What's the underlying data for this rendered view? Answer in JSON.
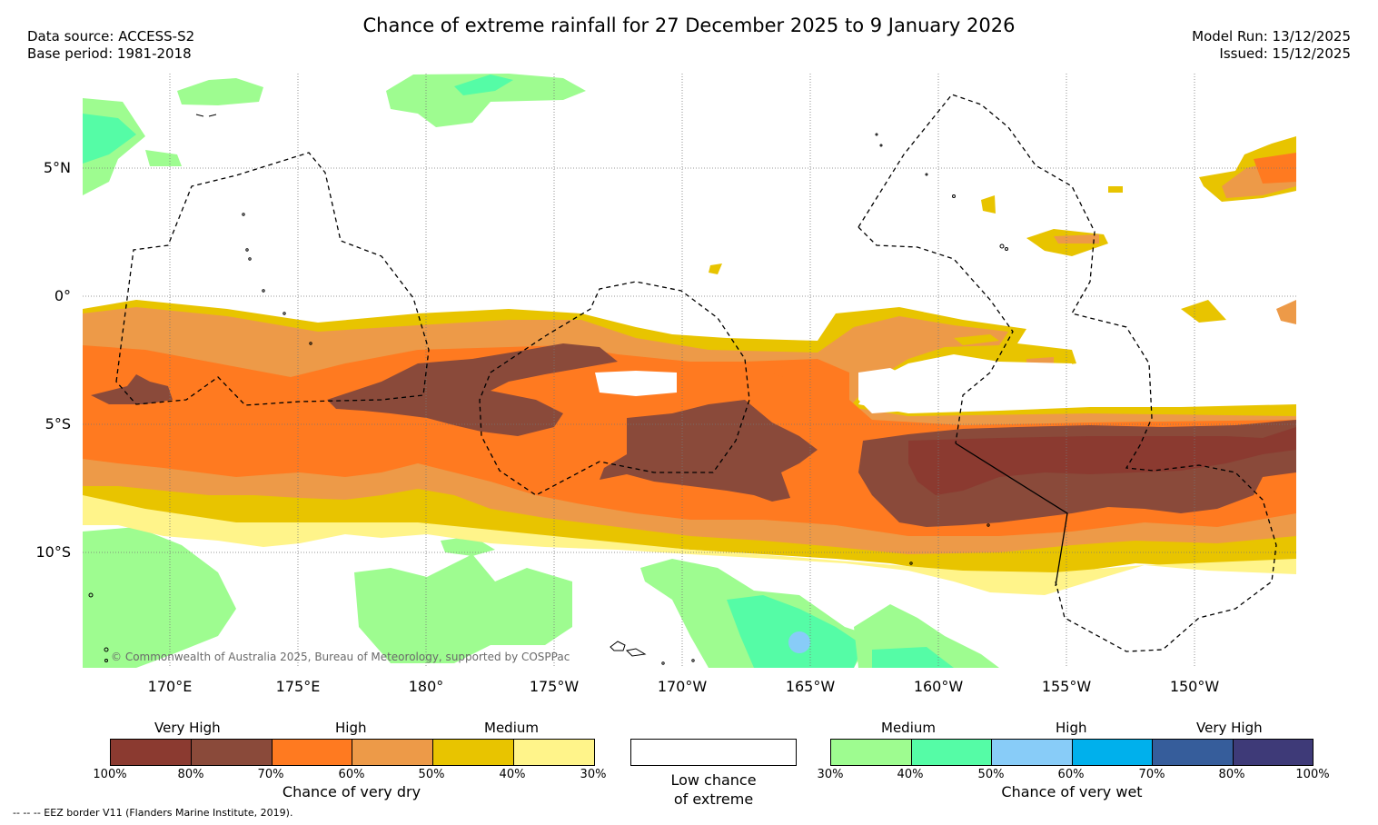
{
  "title": "Chance of extreme rainfall for 27 December 2025 to 9 January 2026",
  "meta_left": {
    "source": "Data source: ACCESS-S2",
    "base": "Base period: 1981-2018"
  },
  "meta_right": {
    "model_run": "Model Run: 13/12/2025",
    "issued": "Issued: 15/12/2025"
  },
  "lat_labels": [
    "5°N",
    "0°",
    "5°S",
    "10°S"
  ],
  "lon_labels": [
    "170°E",
    "175°E",
    "180°",
    "175°W",
    "170°W",
    "165°W",
    "160°W",
    "155°W",
    "150°W"
  ],
  "copyright": "© Commonwealth of Australia 2025, Bureau of Meteorology, supported by COSPPac",
  "legend": {
    "dry": {
      "heads": [
        "Very High",
        "High",
        "Medium"
      ],
      "colors": [
        "#8b3a30",
        "#8a4a3a",
        "#ff7a20",
        "#ed9a48",
        "#e8c400",
        "#fff48a"
      ],
      "ticks": [
        "100%",
        "80%",
        "70%",
        "60%",
        "50%",
        "40%",
        "30%"
      ],
      "caption": "Chance of very dry"
    },
    "low": {
      "line1": "Low chance",
      "line2": "of extreme"
    },
    "wet": {
      "heads": [
        "Medium",
        "High",
        "Very High"
      ],
      "colors": [
        "#9efc90",
        "#55fca6",
        "#88ccf8",
        "#00b0ec",
        "#365d9b",
        "#3e3a78"
      ],
      "ticks": [
        "30%",
        "40%",
        "50%",
        "60%",
        "70%",
        "80%",
        "100%"
      ],
      "caption": "Chance of very wet"
    }
  },
  "footnote": "-- -- -- EEZ border V11 (Flanders Marine Institute, 2019)."
}
